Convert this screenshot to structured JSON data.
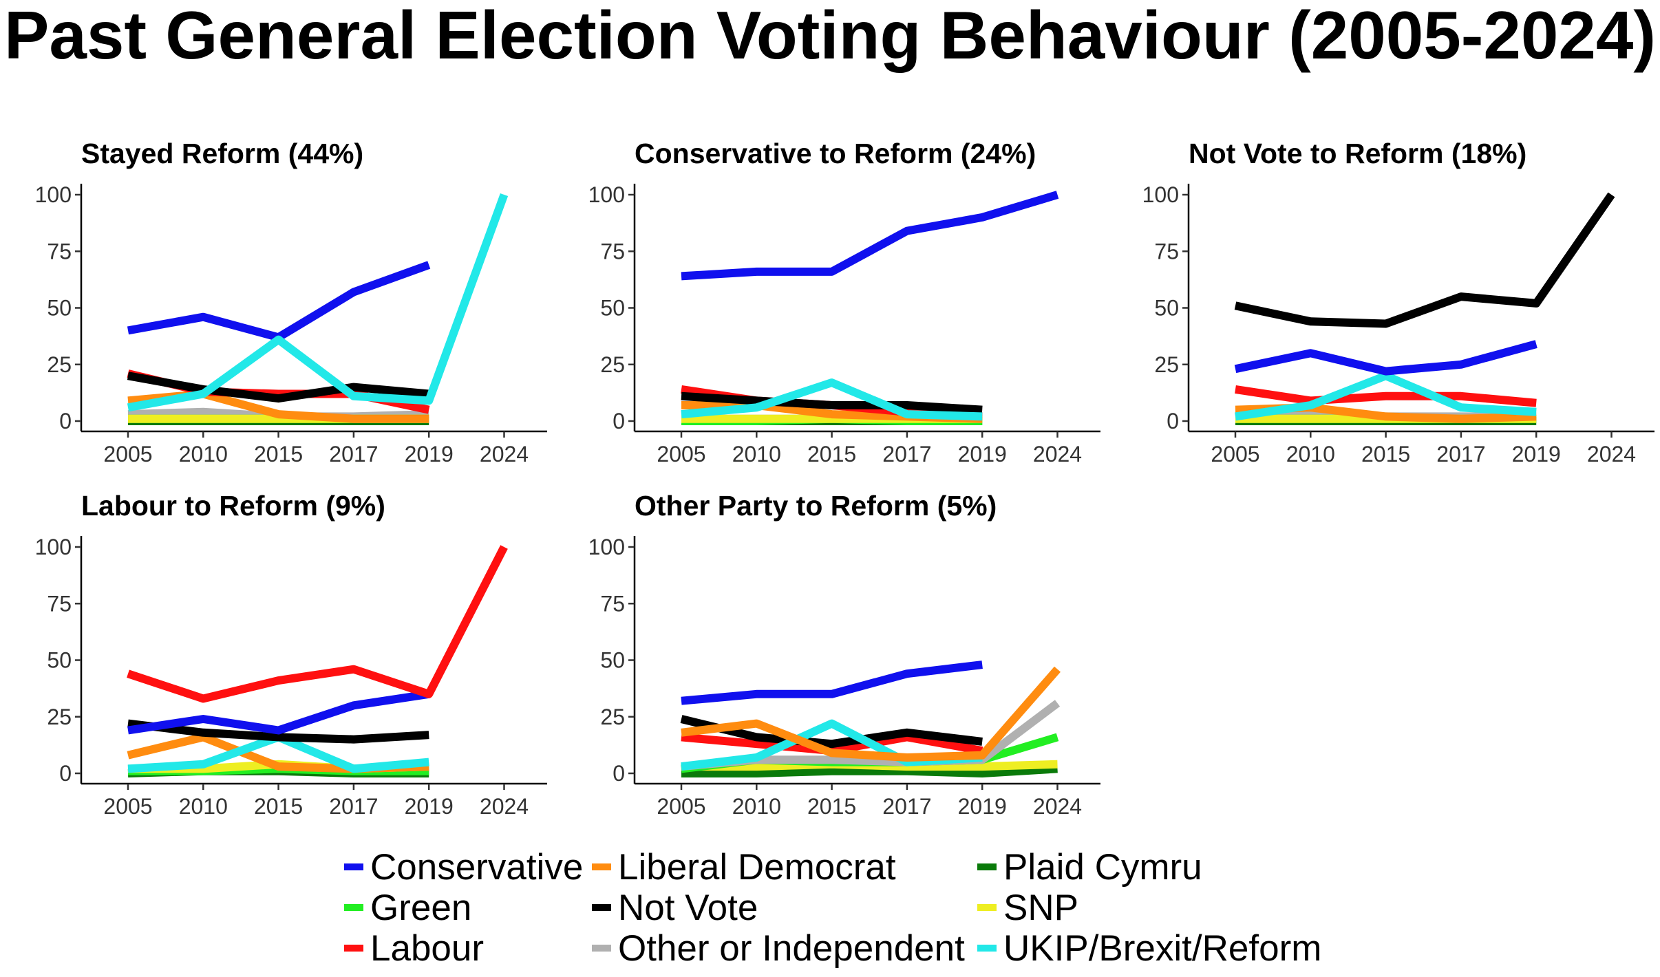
{
  "title": "Past General Election Voting Behaviour (2005-2024)",
  "colors": {
    "Conservative": "#1010ee",
    "Liberal Democrat": "#ff8c10",
    "Plaid Cymru": "#0a7a0a",
    "Green": "#22ee22",
    "Not Vote": "#000000",
    "SNP": "#eeee22",
    "Labour": "#ff1010",
    "Other or Independent": "#b0b0b0",
    "UKIP/Brexit/Reform": "#22e8e8"
  },
  "legend": {
    "items": [
      {
        "label": "Conservative",
        "color": "#1010ee"
      },
      {
        "label": "Liberal Democrat",
        "color": "#ff8c10"
      },
      {
        "label": "Plaid Cymru",
        "color": "#0a7a0a"
      },
      {
        "label": "Green",
        "color": "#22ee22"
      },
      {
        "label": "Not Vote",
        "color": "#000000"
      },
      {
        "label": "SNP",
        "color": "#eeee22"
      },
      {
        "label": "Labour",
        "color": "#ff1010"
      },
      {
        "label": "Other or Independent",
        "color": "#b0b0b0"
      },
      {
        "label": "UKIP/Brexit/Reform",
        "color": "#22e8e8"
      }
    ]
  },
  "chart_data": [
    {
      "type": "line",
      "title": "Stayed Reform (44%)",
      "x": [
        "2005",
        "2010",
        "2015",
        "2017",
        "2019",
        "2024"
      ],
      "yticks": [
        "0",
        "25",
        "50",
        "75",
        "100"
      ],
      "ylim": [
        0,
        100
      ],
      "series": [
        {
          "name": "Other or Independent",
          "values": [
            3,
            4,
            2,
            2,
            3,
            null
          ]
        },
        {
          "name": "Plaid Cymru",
          "values": [
            0,
            0,
            0,
            0,
            0,
            null
          ]
        },
        {
          "name": "Green",
          "values": [
            1,
            1,
            1,
            1,
            1,
            null
          ]
        },
        {
          "name": "SNP",
          "values": [
            1,
            1,
            1,
            1,
            1,
            null
          ]
        },
        {
          "name": "Liberal Democrat",
          "values": [
            9,
            12,
            3,
            1,
            1,
            null
          ]
        },
        {
          "name": "Labour",
          "values": [
            21,
            13,
            12,
            12,
            5,
            null
          ]
        },
        {
          "name": "Not Vote",
          "values": [
            20,
            14,
            10,
            15,
            12,
            null
          ]
        },
        {
          "name": "Conservative",
          "values": [
            40,
            46,
            37,
            57,
            69,
            null
          ]
        },
        {
          "name": "UKIP/Brexit/Reform",
          "values": [
            6,
            12,
            36,
            11,
            9,
            100
          ]
        }
      ]
    },
    {
      "type": "line",
      "title": "Conservative to Reform (24%)",
      "x": [
        "2005",
        "2010",
        "2015",
        "2017",
        "2019",
        "2024"
      ],
      "yticks": [
        "0",
        "25",
        "50",
        "75",
        "100"
      ],
      "ylim": [
        0,
        100
      ],
      "series": [
        {
          "name": "Other or Independent",
          "values": [
            1,
            1,
            1,
            1,
            1,
            null
          ]
        },
        {
          "name": "Plaid Cymru",
          "values": [
            0,
            0,
            0,
            0,
            0,
            null
          ]
        },
        {
          "name": "Green",
          "values": [
            0,
            0,
            1,
            0,
            0,
            null
          ]
        },
        {
          "name": "SNP",
          "values": [
            1,
            1,
            1,
            1,
            1,
            null
          ]
        },
        {
          "name": "Liberal Democrat",
          "values": [
            7,
            7,
            3,
            2,
            1,
            null
          ]
        },
        {
          "name": "Labour",
          "values": [
            14,
            9,
            7,
            4,
            2,
            null
          ]
        },
        {
          "name": "Not Vote",
          "values": [
            11,
            9,
            7,
            7,
            5,
            null
          ]
        },
        {
          "name": "UKIP/Brexit/Reform",
          "values": [
            3,
            6,
            17,
            3,
            2,
            null
          ]
        },
        {
          "name": "Conservative",
          "values": [
            64,
            66,
            66,
            84,
            90,
            100
          ]
        }
      ]
    },
    {
      "type": "line",
      "title": "Not Vote to Reform (18%)",
      "x": [
        "2005",
        "2010",
        "2015",
        "2017",
        "2019",
        "2024"
      ],
      "yticks": [
        "0",
        "25",
        "50",
        "75",
        "100"
      ],
      "ylim": [
        0,
        100
      ],
      "series": [
        {
          "name": "Other or Independent",
          "values": [
            2,
            3,
            2,
            2,
            2,
            null
          ]
        },
        {
          "name": "Plaid Cymru",
          "values": [
            0,
            0,
            0,
            0,
            0,
            null
          ]
        },
        {
          "name": "Green",
          "values": [
            1,
            1,
            1,
            1,
            1,
            null
          ]
        },
        {
          "name": "SNP",
          "values": [
            1,
            1,
            1,
            1,
            1,
            null
          ]
        },
        {
          "name": "Liberal Democrat",
          "values": [
            5,
            6,
            2,
            1,
            2,
            null
          ]
        },
        {
          "name": "Labour",
          "values": [
            14,
            9,
            11,
            11,
            8,
            null
          ]
        },
        {
          "name": "UKIP/Brexit/Reform",
          "values": [
            2,
            7,
            20,
            6,
            4,
            null
          ]
        },
        {
          "name": "Conservative",
          "values": [
            23,
            30,
            22,
            25,
            34,
            null
          ]
        },
        {
          "name": "Not Vote",
          "values": [
            51,
            44,
            43,
            55,
            52,
            100
          ]
        }
      ]
    },
    {
      "type": "line",
      "title": "Labour to Reform (9%)",
      "x": [
        "2005",
        "2010",
        "2015",
        "2017",
        "2019",
        "2024"
      ],
      "yticks": [
        "0",
        "25",
        "50",
        "75",
        "100"
      ],
      "ylim": [
        0,
        100
      ],
      "series": [
        {
          "name": "Other or Independent",
          "values": [
            1,
            1,
            1,
            1,
            1,
            null
          ]
        },
        {
          "name": "Plaid Cymru",
          "values": [
            0,
            1,
            1,
            0,
            0,
            null
          ]
        },
        {
          "name": "Green",
          "values": [
            1,
            1,
            2,
            1,
            1,
            null
          ]
        },
        {
          "name": "SNP",
          "values": [
            2,
            2,
            4,
            2,
            3,
            null
          ]
        },
        {
          "name": "Liberal Democrat",
          "values": [
            8,
            16,
            3,
            2,
            3,
            null
          ]
        },
        {
          "name": "UKIP/Brexit/Reform",
          "values": [
            2,
            4,
            16,
            2,
            5,
            null
          ]
        },
        {
          "name": "Not Vote",
          "values": [
            22,
            18,
            16,
            15,
            17,
            null
          ]
        },
        {
          "name": "Conservative",
          "values": [
            19,
            24,
            19,
            30,
            35,
            null
          ]
        },
        {
          "name": "Labour",
          "values": [
            44,
            33,
            41,
            46,
            35,
            100
          ]
        }
      ]
    },
    {
      "type": "line",
      "title": "Other Party to Reform (5%)",
      "x": [
        "2005",
        "2010",
        "2015",
        "2017",
        "2019",
        "2024"
      ],
      "yticks": [
        "0",
        "25",
        "50",
        "75",
        "100"
      ],
      "ylim": [
        0,
        100
      ],
      "series": [
        {
          "name": "Plaid Cymru",
          "values": [
            0,
            0,
            1,
            1,
            0,
            2
          ]
        },
        {
          "name": "SNP",
          "values": [
            3,
            3,
            4,
            3,
            3,
            4
          ]
        },
        {
          "name": "Green",
          "values": [
            2,
            6,
            5,
            5,
            6,
            16
          ]
        },
        {
          "name": "Other or Independent",
          "values": [
            3,
            6,
            6,
            5,
            6,
            31
          ]
        },
        {
          "name": "Labour",
          "values": [
            16,
            13,
            10,
            16,
            10,
            null
          ]
        },
        {
          "name": "Not Vote",
          "values": [
            24,
            16,
            13,
            18,
            14,
            null
          ]
        },
        {
          "name": "UKIP/Brexit/Reform",
          "values": [
            3,
            7,
            22,
            5,
            7,
            null
          ]
        },
        {
          "name": "Liberal Democrat",
          "values": [
            18,
            22,
            9,
            7,
            8,
            46
          ]
        },
        {
          "name": "Conservative",
          "values": [
            32,
            35,
            35,
            44,
            48,
            null
          ]
        }
      ]
    }
  ]
}
